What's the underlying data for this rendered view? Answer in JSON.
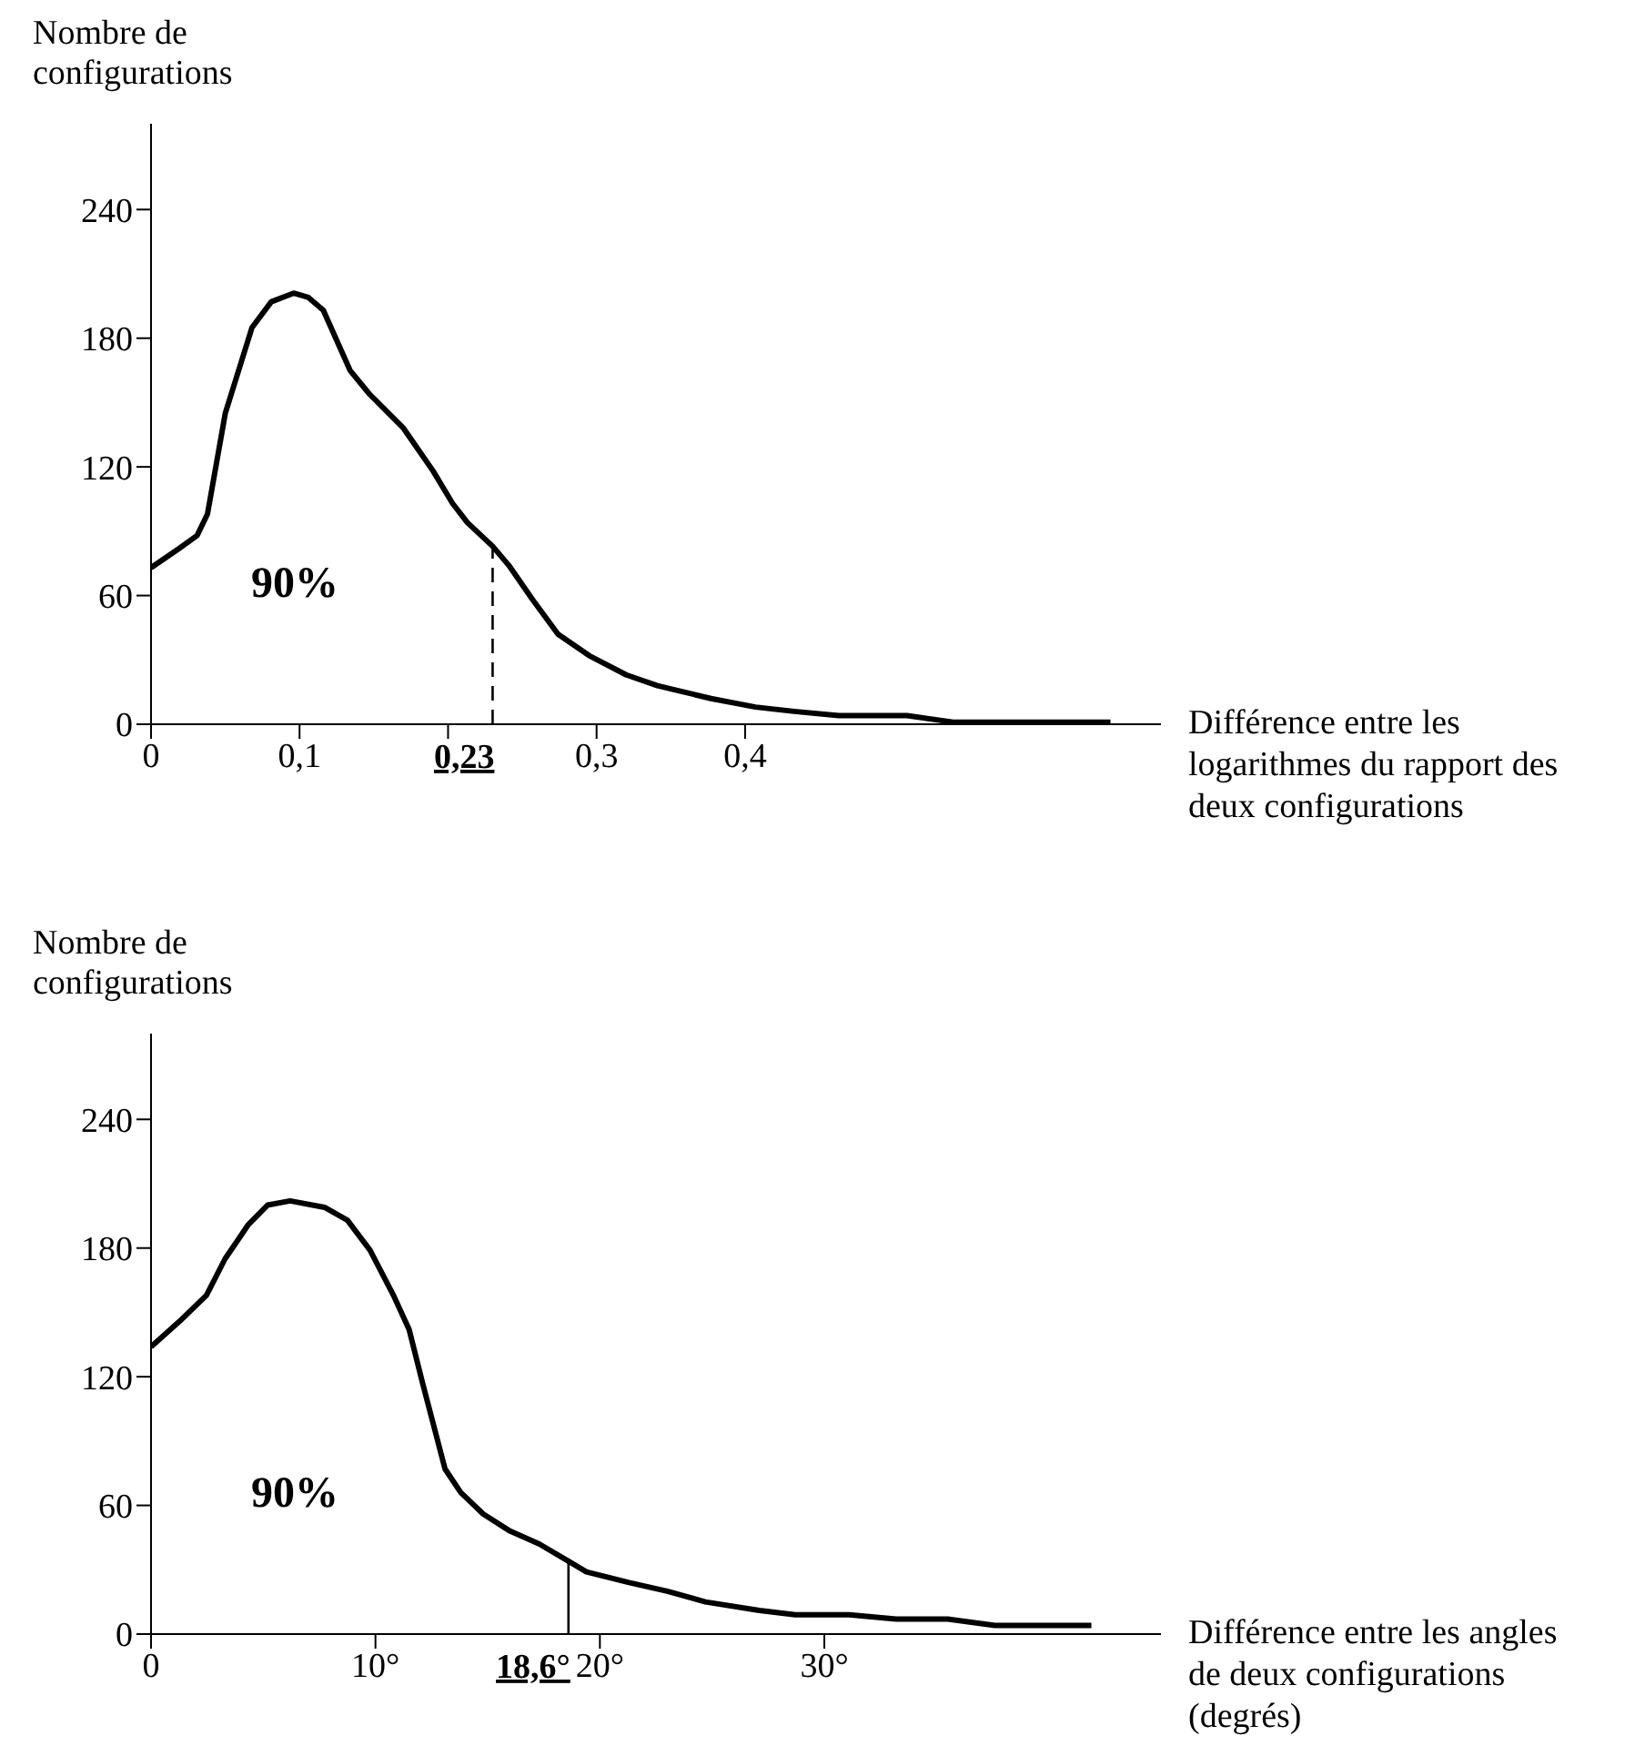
{
  "chart_data": [
    {
      "type": "line",
      "ylabel": "Nombre de configurations",
      "xlabel": "Différence entre les logarithmes du rapport des deux configurations",
      "color": "#000000",
      "marker": "none",
      "line_style": "solid",
      "x": [
        0,
        0.019,
        0.031,
        0.038,
        0.05,
        0.068,
        0.081,
        0.096,
        0.106,
        0.116,
        0.134,
        0.147,
        0.17,
        0.19,
        0.203,
        0.213,
        0.23,
        0.241,
        0.257,
        0.274,
        0.295,
        0.32,
        0.341,
        0.377,
        0.407,
        0.433,
        0.463,
        0.509,
        0.54,
        0.646
      ],
      "values": [
        73,
        82,
        88,
        98,
        145,
        185,
        197,
        201,
        199,
        193,
        165,
        154,
        138,
        118,
        103,
        94,
        83,
        74,
        58,
        42,
        32,
        23,
        18,
        12,
        8,
        6,
        4,
        4,
        1,
        1
      ],
      "xlim": [
        0,
        0.68
      ],
      "ylim": [
        0,
        280
      ],
      "xticks": [
        0,
        {
          "value": 0.1,
          "label": "0,1"
        },
        {
          "value": 0.2,
          "label": null
        },
        {
          "value": 0.3,
          "label": "0,3"
        },
        {
          "value": 0.4,
          "label": "0,4"
        }
      ],
      "yticks": [
        0,
        60,
        120,
        180,
        240
      ],
      "ref_lines": [
        {
          "axis": "x",
          "value": 0.23,
          "label": "0,23",
          "line_style": "dashed"
        }
      ],
      "annotations": [
        "90%"
      ]
    },
    {
      "type": "line",
      "ylabel": "Nombre de configurations",
      "xlabel": "Différence entre les angles de deux configurations (degrés)",
      "color": "#000000",
      "marker": "none",
      "line_style": "solid",
      "x": [
        0,
        1.29,
        2.47,
        3.3,
        4.34,
        5.19,
        6.2,
        7.73,
        8.75,
        9.76,
        10.8,
        11.5,
        12.1,
        13.1,
        13.8,
        14.8,
        16,
        17.3,
        18.6,
        19.4,
        21.3,
        23,
        24.7,
        27.1,
        28.7,
        31.1,
        33.2,
        35.5,
        37.6,
        41.9
      ],
      "values": [
        134,
        146,
        158,
        175,
        191,
        200,
        202,
        199,
        193,
        179,
        158,
        142,
        117,
        77,
        66,
        56,
        48,
        42,
        34,
        29,
        24,
        20,
        15,
        11,
        9,
        9,
        7,
        7,
        4,
        4
      ],
      "xlim": [
        0,
        45
      ],
      "ylim": [
        0,
        280
      ],
      "xticks": [
        0,
        {
          "value": 10,
          "label": "10°"
        },
        {
          "value": 20,
          "label": "20°"
        },
        {
          "value": 30,
          "label": "30°"
        }
      ],
      "yticks": [
        0,
        60,
        120,
        180,
        240
      ],
      "ref_lines": [
        {
          "axis": "x",
          "value": 18.6,
          "label": "18,6°",
          "line_style": "solid"
        }
      ],
      "annotations": [
        "90%"
      ]
    }
  ]
}
